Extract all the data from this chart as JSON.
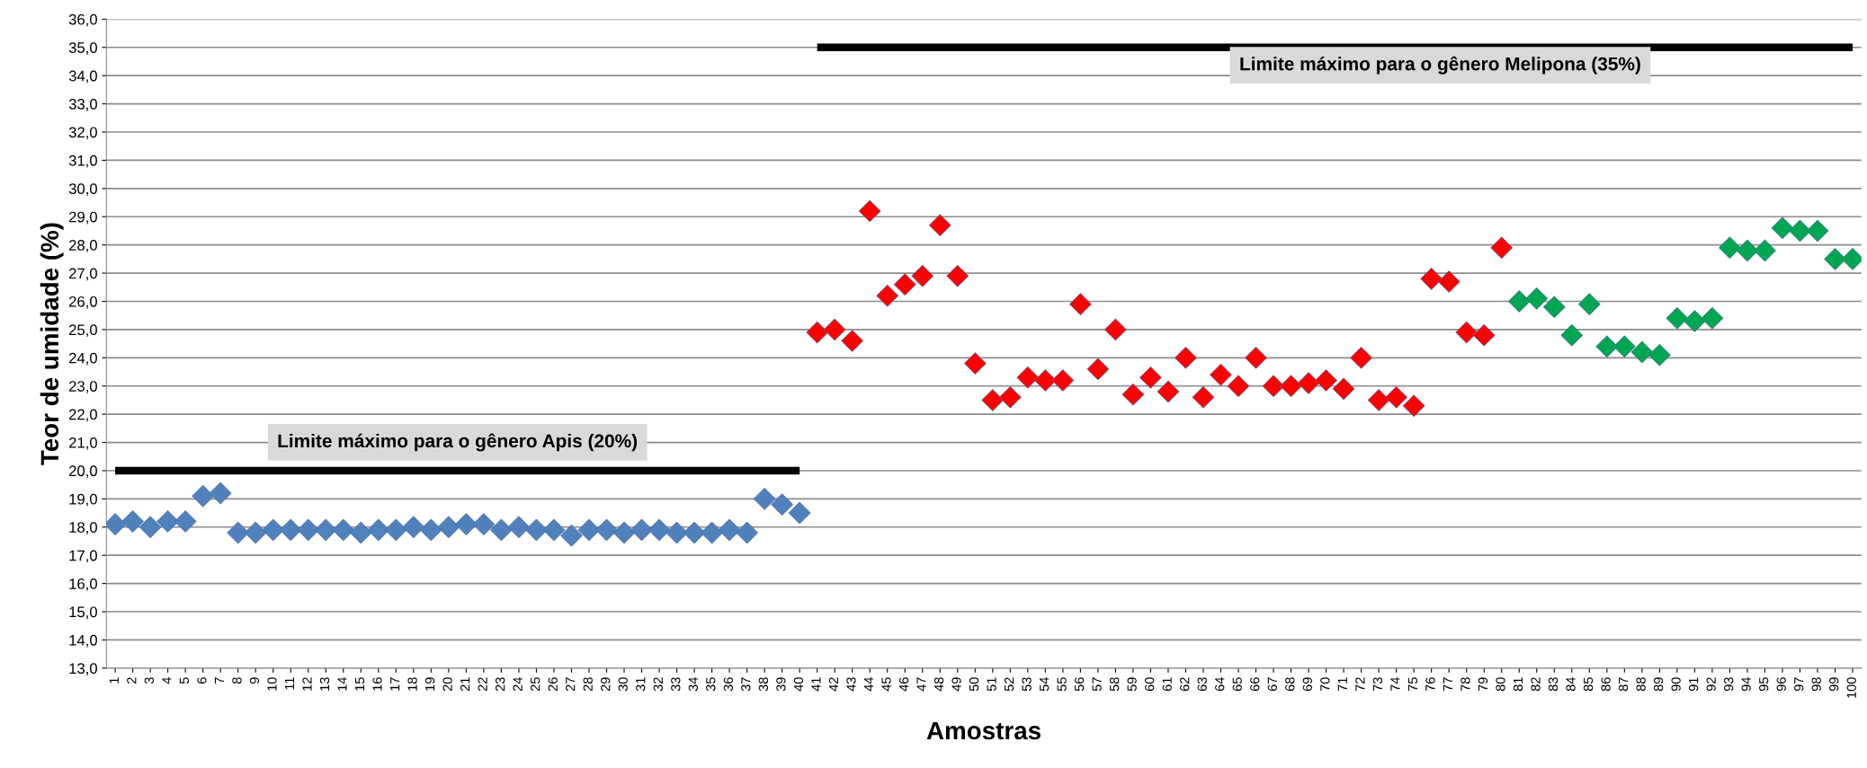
{
  "chart_data": {
    "type": "scatter",
    "xlabel": "Amostras",
    "ylabel": "Teor de umidade (%)",
    "categories": [
      "1",
      "2",
      "3",
      "4",
      "5",
      "6",
      "7",
      "8",
      "9",
      "10",
      "11",
      "12",
      "13",
      "14",
      "15",
      "16",
      "17",
      "18",
      "19",
      "20",
      "21",
      "22",
      "23",
      "24",
      "25",
      "26",
      "27",
      "28",
      "29",
      "30",
      "31",
      "32",
      "33",
      "34",
      "35",
      "36",
      "37",
      "38",
      "39",
      "40",
      "41",
      "42",
      "43",
      "44",
      "45",
      "46",
      "47",
      "48",
      "49",
      "50",
      "51",
      "52",
      "53",
      "54",
      "55",
      "56",
      "57",
      "58",
      "59",
      "60",
      "61",
      "62",
      "63",
      "64",
      "65",
      "66",
      "67",
      "68",
      "69",
      "70",
      "71",
      "72",
      "73",
      "74",
      "75",
      "76",
      "77",
      "78",
      "79",
      "80",
      "81",
      "82",
      "83",
      "84",
      "85",
      "86",
      "87",
      "88",
      "89",
      "90",
      "91",
      "92",
      "93",
      "94",
      "95",
      "96",
      "97",
      "98",
      "99",
      "100"
    ],
    "series": [
      {
        "color": "#4f81bd",
        "marker": "diamond",
        "values": [
          18.1,
          18.2,
          18.0,
          18.2,
          18.2,
          19.1,
          19.2,
          17.8,
          17.8,
          17.9,
          17.9,
          17.9,
          17.9,
          17.9,
          17.8,
          17.9,
          17.9,
          18.0,
          17.9,
          18.0,
          18.1,
          18.1,
          17.9,
          18.0,
          17.9,
          17.9,
          17.7,
          17.9,
          17.9,
          17.8,
          17.9,
          17.9,
          17.8,
          17.8,
          17.8,
          17.9,
          17.8,
          19.0,
          18.8,
          18.5,
          null,
          null,
          null,
          null,
          null,
          null,
          null,
          null,
          null,
          null,
          null,
          null,
          null,
          null,
          null,
          null,
          null,
          null,
          null,
          null,
          null,
          null,
          null,
          null,
          null,
          null,
          null,
          null,
          null,
          null,
          null,
          null,
          null,
          null,
          null,
          null,
          null,
          null,
          null,
          null,
          null,
          null,
          null,
          null,
          null,
          null,
          null,
          null,
          null,
          null,
          null,
          null,
          null,
          null,
          null,
          null,
          null,
          null,
          null,
          null
        ]
      },
      {
        "color": "#ff0000",
        "marker": "diamond",
        "values": [
          null,
          null,
          null,
          null,
          null,
          null,
          null,
          null,
          null,
          null,
          null,
          null,
          null,
          null,
          null,
          null,
          null,
          null,
          null,
          null,
          null,
          null,
          null,
          null,
          null,
          null,
          null,
          null,
          null,
          null,
          null,
          null,
          null,
          null,
          null,
          null,
          null,
          null,
          null,
          null,
          24.9,
          25.0,
          24.6,
          29.2,
          26.2,
          26.6,
          26.9,
          28.7,
          26.9,
          23.8,
          22.5,
          22.6,
          23.3,
          23.2,
          23.2,
          25.9,
          23.6,
          25.0,
          22.7,
          23.3,
          22.8,
          24.0,
          22.6,
          23.4,
          23.0,
          24.0,
          23.0,
          23.0,
          23.1,
          23.2,
          22.9,
          24.0,
          22.5,
          22.6,
          22.3,
          26.8,
          26.7,
          24.9,
          24.8,
          27.9,
          null,
          null,
          null,
          null,
          null,
          null,
          null,
          null,
          null,
          null,
          null,
          null,
          null,
          null,
          null,
          null,
          null,
          null,
          null,
          null
        ]
      },
      {
        "color": "#00a651",
        "marker": "diamond",
        "values": [
          null,
          null,
          null,
          null,
          null,
          null,
          null,
          null,
          null,
          null,
          null,
          null,
          null,
          null,
          null,
          null,
          null,
          null,
          null,
          null,
          null,
          null,
          null,
          null,
          null,
          null,
          null,
          null,
          null,
          null,
          null,
          null,
          null,
          null,
          null,
          null,
          null,
          null,
          null,
          null,
          null,
          null,
          null,
          null,
          null,
          null,
          null,
          null,
          null,
          null,
          null,
          null,
          null,
          null,
          null,
          null,
          null,
          null,
          null,
          null,
          null,
          null,
          null,
          null,
          null,
          null,
          null,
          null,
          null,
          null,
          null,
          null,
          null,
          null,
          null,
          null,
          null,
          null,
          null,
          null,
          26.0,
          26.1,
          25.8,
          24.8,
          25.9,
          24.4,
          24.4,
          24.2,
          24.1,
          25.4,
          25.3,
          25.4,
          27.9,
          27.8,
          27.8,
          28.6,
          28.5,
          28.5,
          27.5,
          27.5
        ]
      },
      {
        "type": "line",
        "color": "#000000",
        "values": [
          20,
          20,
          20,
          20,
          20,
          20,
          20,
          20,
          20,
          20,
          20,
          20,
          20,
          20,
          20,
          20,
          20,
          20,
          20,
          20,
          20,
          20,
          20,
          20,
          20,
          20,
          20,
          20,
          20,
          20,
          20,
          20,
          20,
          20,
          20,
          20,
          20,
          20,
          20,
          20,
          null,
          null,
          null,
          null,
          null,
          null,
          null,
          null,
          null,
          null,
          null,
          null,
          null,
          null,
          null,
          null,
          null,
          null,
          null,
          null,
          null,
          null,
          null,
          null,
          null,
          null,
          null,
          null,
          null,
          null,
          null,
          null,
          null,
          null,
          null,
          null,
          null,
          null,
          null,
          null,
          null,
          null,
          null,
          null,
          null,
          null,
          null,
          null,
          null,
          null,
          null,
          null,
          null,
          null,
          null,
          null,
          null,
          null,
          null,
          null
        ]
      },
      {
        "type": "line",
        "color": "#000000",
        "values": [
          null,
          null,
          null,
          null,
          null,
          null,
          null,
          null,
          null,
          null,
          null,
          null,
          null,
          null,
          null,
          null,
          null,
          null,
          null,
          null,
          null,
          null,
          null,
          null,
          null,
          null,
          null,
          null,
          null,
          null,
          null,
          null,
          null,
          null,
          null,
          null,
          null,
          null,
          null,
          null,
          35,
          35,
          35,
          35,
          35,
          35,
          35,
          35,
          35,
          35,
          35,
          35,
          35,
          35,
          35,
          35,
          35,
          35,
          35,
          35,
          35,
          35,
          35,
          35,
          35,
          35,
          35,
          35,
          35,
          35,
          35,
          35,
          35,
          35,
          35,
          35,
          35,
          35,
          35,
          35,
          35,
          35,
          35,
          35,
          35,
          35,
          35,
          35,
          35,
          35,
          35,
          35,
          35,
          35,
          35,
          35,
          35,
          35,
          35,
          35
        ]
      }
    ],
    "annotations": [
      "Limite máximo para o gênero Apis (20%)",
      "Limite máximo para o gênero Melipona (35%)"
    ],
    "ylim": [
      13,
      36
    ],
    "yticks": [
      {
        "value": 13,
        "label": "13,0"
      },
      {
        "value": 14,
        "label": "14,0"
      },
      {
        "value": 15,
        "label": "15,0"
      },
      {
        "value": 16,
        "label": "16,0"
      },
      {
        "value": 17,
        "label": "17,0"
      },
      {
        "value": 18,
        "label": "18,0"
      },
      {
        "value": 19,
        "label": "19,0"
      },
      {
        "value": 20,
        "label": "20,0"
      },
      {
        "value": 21,
        "label": "21,0"
      },
      {
        "value": 22,
        "label": "22,0"
      },
      {
        "value": 23,
        "label": "23,0"
      },
      {
        "value": 24,
        "label": "24,0"
      },
      {
        "value": 25,
        "label": "25,0"
      },
      {
        "value": 26,
        "label": "26,0"
      },
      {
        "value": 27,
        "label": "27,0"
      },
      {
        "value": 28,
        "label": "28,0"
      },
      {
        "value": 29,
        "label": "29,0"
      },
      {
        "value": 30,
        "label": "30,0"
      },
      {
        "value": 31,
        "label": "31,0"
      },
      {
        "value": 32,
        "label": "32,0"
      },
      {
        "value": 33,
        "label": "33,0"
      },
      {
        "value": 34,
        "label": "34,0"
      },
      {
        "value": 35,
        "label": "35,0"
      },
      {
        "value": 36,
        "label": "36,0"
      }
    ],
    "grid": "y"
  }
}
